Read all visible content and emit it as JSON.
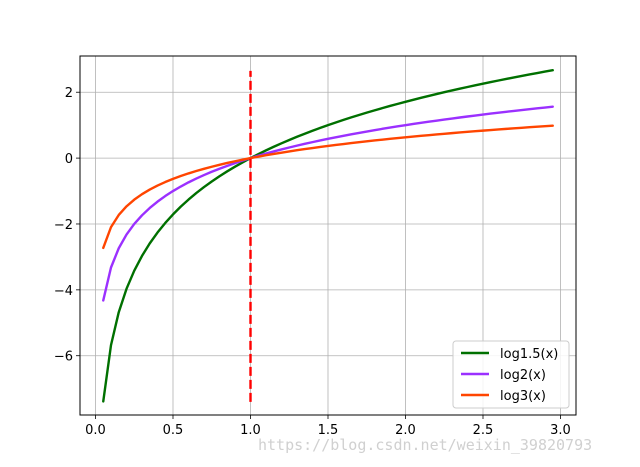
{
  "chart_data": {
    "type": "line",
    "title": "",
    "xlabel": "",
    "ylabel": "",
    "xlim": [
      -0.1,
      3.1
    ],
    "ylim": [
      -7.8,
      3.1
    ],
    "xticks": [
      0.0,
      0.5,
      1.0,
      1.5,
      2.0,
      2.5,
      3.0
    ],
    "xtick_labels": [
      "0.0",
      "0.5",
      "1.0",
      "1.5",
      "2.0",
      "2.5",
      "3.0"
    ],
    "yticks": [
      -6,
      -4,
      -2,
      0,
      2
    ],
    "ytick_labels": [
      "−6",
      "−4",
      "−2",
      "0",
      "2"
    ],
    "grid": true,
    "legend_position": "lower-right",
    "x_start": 0.05,
    "x_end": 2.95,
    "x_step": 0.05,
    "series": [
      {
        "name": "log1.5(x)",
        "base": 1.5,
        "color": "#007000"
      },
      {
        "name": "log2(x)",
        "base": 2,
        "color": "#9b30ff"
      },
      {
        "name": "log3(x)",
        "base": 3,
        "color": "#ff4500"
      }
    ],
    "vertical_line": {
      "x": 1.0,
      "y_from": -7.4,
      "y_to": 2.65,
      "color": "#ff0000",
      "style": "dashed"
    }
  },
  "watermark": "https://blog.csdn.net/weixin_39820793"
}
